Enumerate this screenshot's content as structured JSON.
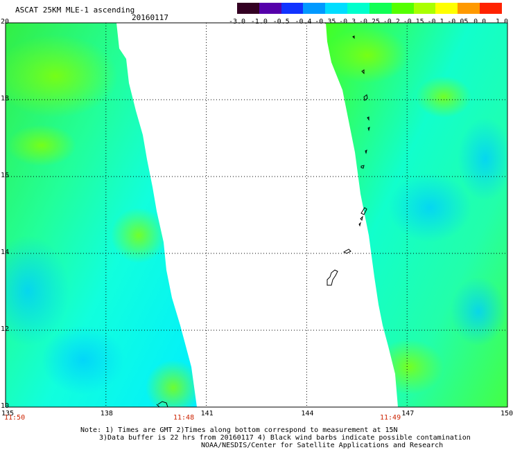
{
  "header": {
    "title": "ASCAT 25KM MLE-1 ascending",
    "date": "20160117"
  },
  "colorbar": {
    "labels": [
      "-3.0",
      "-1.0",
      "-0.5",
      "-0.4",
      "-0.35",
      "-0.3",
      "-0.25",
      "-0.2",
      "-0.15",
      "-0.1",
      "-0.05",
      "0.0",
      "1.0"
    ],
    "colors": [
      "#330022",
      "#5500aa",
      "#1133ff",
      "#0099ff",
      "#00ddff",
      "#00ffcc",
      "#11ff55",
      "#55ff00",
      "#aaff00",
      "#ffff00",
      "#ff9900",
      "#ff2200"
    ]
  },
  "axes": {
    "x_labels": [
      "135",
      "138",
      "141",
      "144",
      "147",
      "150"
    ],
    "y_labels": [
      "20",
      "18",
      "16",
      "14",
      "12",
      "10"
    ],
    "lon_range": [
      135,
      150
    ],
    "lat_range": [
      10,
      20
    ]
  },
  "times": [
    "11:50",
    "11:48",
    "11:49"
  ],
  "notes": {
    "line1": "Note: 1) Times are GMT 2)Times along bottom correspond to measurement at 15N",
    "line2": "3)Data buffer is 22 hrs from 20160117 4) Black wind barbs indicate possible contamination",
    "line3": "NOAA/NESDIS/Center for Satellite Applications and Research"
  }
}
